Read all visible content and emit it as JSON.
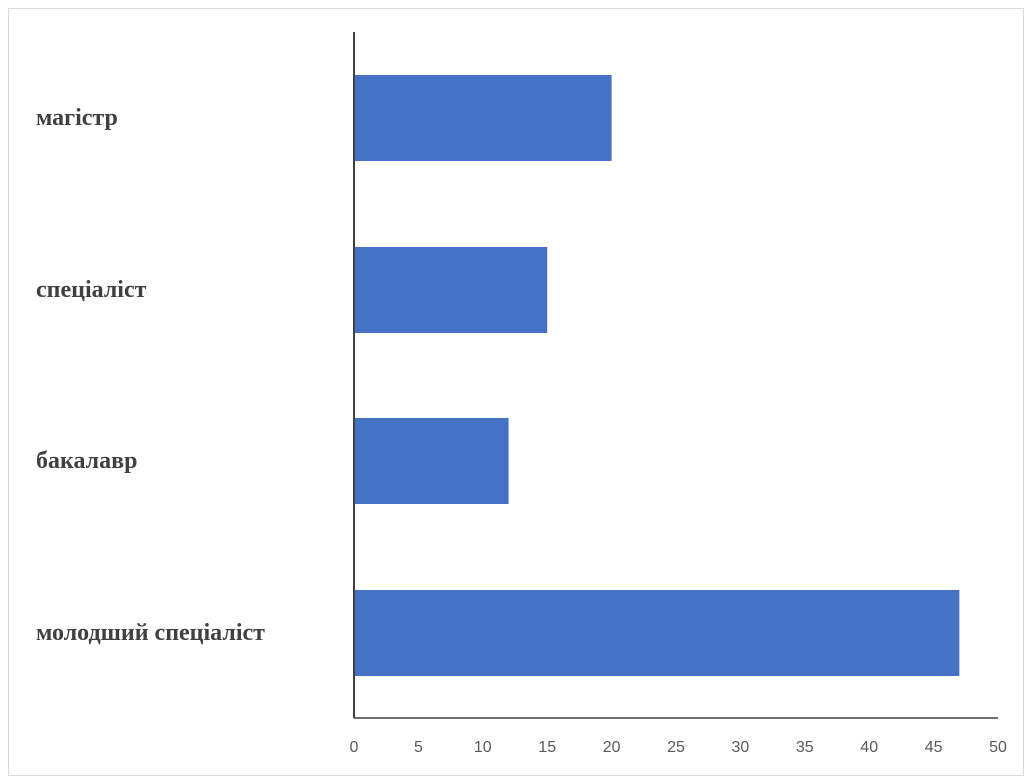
{
  "chart_data": {
    "type": "bar",
    "orientation": "horizontal",
    "categories": [
      "молодший спеціаліст",
      "бакалавр",
      "спеціаліст",
      "магістр"
    ],
    "values": [
      47,
      12,
      15,
      20
    ],
    "x_ticks": [
      "0",
      "5",
      "10",
      "15",
      "20",
      "25",
      "30",
      "35",
      "40",
      "45",
      "50"
    ],
    "xlim": [
      0,
      50
    ],
    "grid": false,
    "legend": "none",
    "bar_color": "#4472C4",
    "axis_color": "#404040"
  }
}
